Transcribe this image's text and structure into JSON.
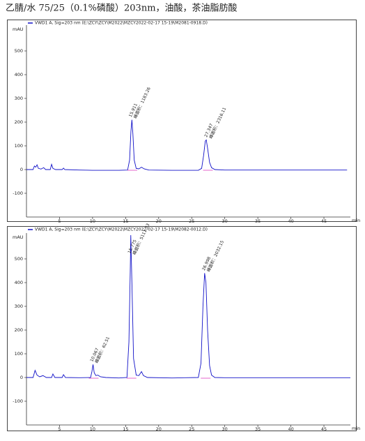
{
  "title": "乙腈/水   75/25（0.1%磷酸）203nm，油酸，茶油脂肪酸",
  "chart_data": [
    {
      "type": "line",
      "y_label": "mAU",
      "x_label": "min",
      "x": [
        0,
        1.0,
        1.2,
        1.4,
        1.6,
        1.8,
        2.2,
        2.6,
        2.9,
        3.6,
        3.8,
        4.0,
        4.4,
        5.4,
        5.6,
        5.8,
        8,
        10,
        12,
        14,
        15.3,
        15.6,
        15.8,
        15.95,
        16.1,
        16.3,
        16.6,
        17,
        17.4,
        17.8,
        18.5,
        22,
        26,
        26.5,
        26.8,
        27.05,
        27.2,
        27.4,
        27.7,
        28.0,
        28.5,
        30,
        35,
        40,
        45,
        48.5
      ],
      "series": [
        {
          "name": "VWD1 A, Sig=203 nm (E:\\ZCY\\ZCY\\M2022\\MZCY2022-02-17 15-19\\M2081-0918.D)",
          "color": "#1010c8",
          "values": [
            0,
            0,
            15,
            10,
            20,
            5,
            2,
            8,
            0,
            0,
            22,
            5,
            0,
            0,
            6,
            0,
            -2,
            -3,
            -3,
            -3,
            -2,
            40,
            160,
            210,
            150,
            40,
            5,
            3,
            10,
            3,
            -2,
            -3,
            -3,
            5,
            60,
            120,
            125,
            90,
            30,
            8,
            0,
            -2,
            -2,
            -2,
            -2,
            -2
          ]
        }
      ],
      "xlim": [
        0,
        49
      ],
      "xticks": [
        5,
        10,
        15,
        20,
        25,
        30,
        35,
        40,
        45
      ],
      "ylim": [
        -200,
        600
      ],
      "yticks": [
        -100,
        0,
        100,
        200,
        300,
        400,
        500
      ],
      "annotations": [
        {
          "x": 15.911,
          "label": "15.911",
          "area": "峰面积：1183.26"
        },
        {
          "x": 27.347,
          "label": "27.347",
          "area": "峰面积：2316.11"
        }
      ]
    },
    {
      "type": "line",
      "y_label": "mAU",
      "x_label": "min",
      "x": [
        0,
        1.0,
        1.3,
        1.6,
        2,
        2.5,
        3,
        3.8,
        4.0,
        4.3,
        5.4,
        5.6,
        5.9,
        8,
        9.7,
        9.9,
        10.07,
        10.25,
        10.5,
        10.8,
        11.2,
        12,
        14,
        15.2,
        15.5,
        15.7,
        15.78,
        15.95,
        16.2,
        16.6,
        17,
        17.4,
        17.7,
        18.3,
        22,
        24,
        26,
        26.4,
        26.7,
        26.95,
        27.15,
        27.4,
        27.7,
        28,
        28.5,
        30,
        40,
        49
      ],
      "series": [
        {
          "name": "VWD1 A, Sig=203 nm (E:\\ZCY\\ZCY\\M2022\\MZCY2022-02-17 15-19\\M2082-0012.D)",
          "color": "#1010c8",
          "values": [
            0,
            0,
            30,
            10,
            3,
            8,
            0,
            0,
            15,
            0,
            0,
            12,
            0,
            -1,
            0,
            25,
            55,
            20,
            8,
            10,
            3,
            0,
            -2,
            0,
            150,
            450,
            600,
            400,
            80,
            10,
            8,
            25,
            8,
            0,
            -2,
            -1,
            0,
            60,
            300,
            440,
            400,
            200,
            50,
            10,
            0,
            -1,
            -1,
            -1
          ]
        }
      ],
      "xlim": [
        0,
        49
      ],
      "xticks": [
        5,
        10,
        15,
        20,
        25,
        30,
        35,
        40,
        45
      ],
      "ylim": [
        -200,
        600
      ],
      "yticks": [
        -100,
        0,
        100,
        200,
        300,
        400,
        500
      ],
      "annotations": [
        {
          "x": 10.067,
          "label": "10.067",
          "area": "峰面积：62.51"
        },
        {
          "x": 15.775,
          "label": "15.775",
          "area": "峰面积：5111.13"
        },
        {
          "x": 26.998,
          "label": "26.998",
          "area": "峰面积：2032.15"
        }
      ]
    }
  ]
}
